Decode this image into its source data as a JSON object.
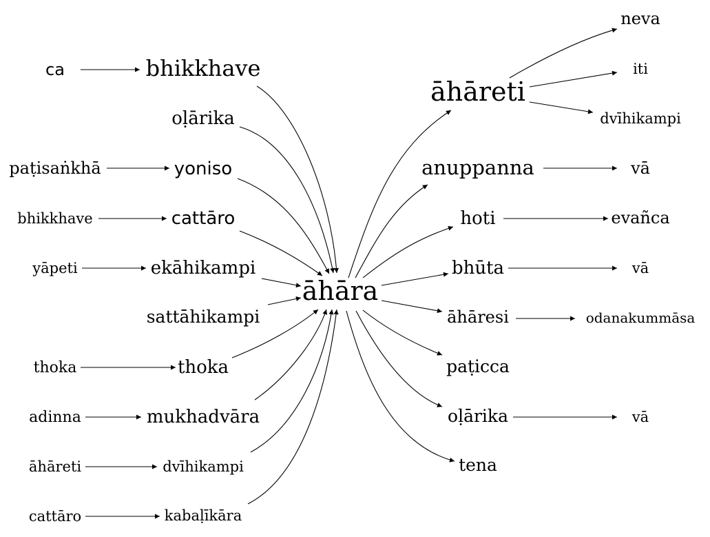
{
  "graph": {
    "center": "āhāra",
    "left_chains": [
      {
        "source": "ca",
        "target": "bhikkhave"
      },
      {
        "source": null,
        "target": "oḷārika"
      },
      {
        "source": "paṭisaṅkhā",
        "target": "yoniso"
      },
      {
        "source": "bhikkhave",
        "target": "cattāro"
      },
      {
        "source": "yāpeti",
        "target": "ekāhikampi"
      },
      {
        "source": null,
        "target": "sattāhikampi"
      },
      {
        "source": "thoka",
        "target": "thoka"
      },
      {
        "source": "adinna",
        "target": "mukhadvāra"
      },
      {
        "source": "āhāreti",
        "target": "dvīhikampi"
      },
      {
        "source": "cattāro",
        "target": "kabaḷīkāra"
      }
    ],
    "right_chains": [
      {
        "node": "āhāreti",
        "children": [
          "neva",
          "iti",
          "dvīhikampi"
        ]
      },
      {
        "node": "anuppanna",
        "children": [
          "vā"
        ]
      },
      {
        "node": "hoti",
        "children": [
          "evañca"
        ]
      },
      {
        "node": "bhūta",
        "children": [
          "vā"
        ]
      },
      {
        "node": "āhāresi",
        "children": [
          "odanakummāsa"
        ]
      },
      {
        "node": "paṭicca",
        "children": []
      },
      {
        "node": "oḷārika",
        "children": [
          "vā"
        ]
      },
      {
        "node": "tena",
        "children": []
      }
    ]
  }
}
